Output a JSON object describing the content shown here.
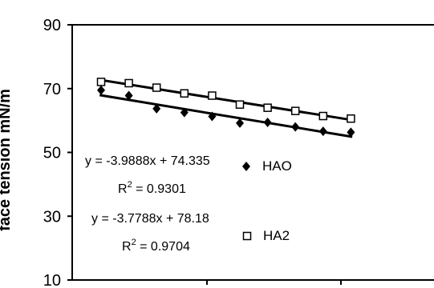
{
  "chart_data": {
    "type": "scatter",
    "ylabel": "face tension mN/m",
    "ylim": [
      10,
      90
    ],
    "yticks": [
      10,
      30,
      50,
      70,
      90
    ],
    "grid": false,
    "legend_position": "right-middle",
    "series": [
      {
        "name": "HAO",
        "marker": "filled-diamond",
        "x": [
          1,
          2,
          3,
          4,
          5,
          6,
          7,
          8,
          9,
          10
        ],
        "values": [
          69.5,
          67.8,
          63.7,
          62.5,
          61.3,
          59.2,
          59.4,
          58.0,
          56.6,
          56.3
        ]
      },
      {
        "name": "HA2",
        "marker": "open-square",
        "x": [
          1,
          2,
          3,
          4,
          5,
          6,
          7,
          8,
          9,
          10
        ],
        "values": [
          72.1,
          71.7,
          70.3,
          68.5,
          67.8,
          65.0,
          64.0,
          63.0,
          61.4,
          60.6
        ]
      }
    ],
    "trendlines": [
      {
        "series": "HAO",
        "equation": "y = -3.9888x + 74.335",
        "r2_prefix": "R",
        "r2_sup": "2",
        "r2_value": " = 0.9301"
      },
      {
        "series": "HA2",
        "equation": "y = -3.7788x + 78.18",
        "r2_prefix": "R",
        "r2_sup": "2",
        "r2_value": " = 0.9704"
      }
    ]
  }
}
